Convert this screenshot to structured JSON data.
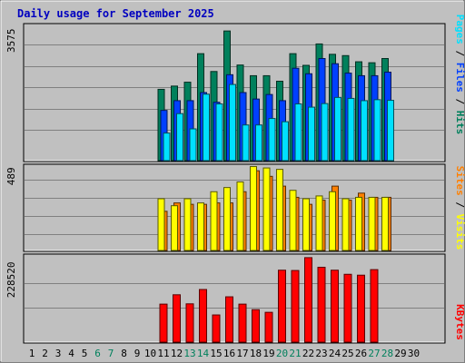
{
  "title": "Daily usage for September 2025",
  "colors": {
    "background": "#c0c0c0",
    "plot_bg": "#c0c0c0",
    "hits": "#00805c",
    "files": "#0040ff",
    "pages": "#00e0ff",
    "visits": "#ffff00",
    "sites": "#ff8000",
    "kbytes": "#ff0000",
    "weekend_label": "#00805c",
    "title": "#0000c0"
  },
  "chart_data": [
    {
      "type": "bar",
      "name": "hits-files-pages",
      "y_tick_label": "3575",
      "ylim": [
        0,
        4200
      ],
      "categories": [
        "1",
        "2",
        "3",
        "4",
        "5",
        "6",
        "7",
        "8",
        "9",
        "10",
        "11",
        "12",
        "13",
        "14",
        "15",
        "16",
        "17",
        "18",
        "19",
        "20",
        "21",
        "22",
        "23",
        "24",
        "25",
        "26",
        "27",
        "28",
        "29",
        "30"
      ],
      "series": [
        {
          "name": "Hits",
          "values": [
            null,
            null,
            null,
            null,
            null,
            null,
            null,
            null,
            null,
            null,
            2200,
            2300,
            2420,
            3300,
            2750,
            4000,
            2950,
            2620,
            2620,
            2450,
            3300,
            2940,
            3600,
            3280,
            3240,
            3050,
            3020,
            3150,
            null,
            null
          ]
        },
        {
          "name": "Files",
          "values": [
            null,
            null,
            null,
            null,
            null,
            null,
            null,
            null,
            null,
            null,
            1550,
            1850,
            1850,
            2100,
            1800,
            2650,
            2100,
            1900,
            2040,
            1850,
            2850,
            2680,
            3150,
            2990,
            2700,
            2620,
            2620,
            2730,
            null,
            null
          ]
        },
        {
          "name": "Pages",
          "values": [
            null,
            null,
            null,
            null,
            null,
            null,
            null,
            null,
            null,
            null,
            850,
            1450,
            980,
            2050,
            1750,
            2350,
            1100,
            1100,
            1300,
            1200,
            1750,
            1650,
            1760,
            1950,
            1920,
            1850,
            1880,
            1860,
            null,
            null
          ]
        }
      ],
      "legend": [
        "Pages",
        "Files",
        "Hits"
      ]
    },
    {
      "type": "bar",
      "name": "sites-visits",
      "y_tick_label": "489",
      "ylim": [
        0,
        610
      ],
      "categories": [
        "1",
        "2",
        "3",
        "4",
        "5",
        "6",
        "7",
        "8",
        "9",
        "10",
        "11",
        "12",
        "13",
        "14",
        "15",
        "16",
        "17",
        "18",
        "19",
        "20",
        "21",
        "22",
        "23",
        "24",
        "25",
        "26",
        "27",
        "28",
        "29",
        "30"
      ],
      "series": [
        {
          "name": "Visits",
          "values": [
            null,
            null,
            null,
            null,
            null,
            null,
            null,
            null,
            null,
            null,
            280,
            340,
            330,
            330,
            340,
            340,
            420,
            570,
            530,
            460,
            380,
            330,
            360,
            460,
            360,
            410,
            380,
            380,
            null,
            null
          ]
        },
        {
          "name": "Sites",
          "values": [
            null,
            null,
            null,
            null,
            null,
            null,
            null,
            null,
            null,
            null,
            370,
            320,
            370,
            340,
            420,
            450,
            490,
            600,
            590,
            580,
            430,
            370,
            390,
            420,
            370,
            380,
            380,
            380,
            null,
            null
          ]
        }
      ],
      "legend": [
        "Sites",
        "Visits"
      ]
    },
    {
      "type": "bar",
      "name": "kbytes",
      "y_tick_label": "228520",
      "ylim": [
        0,
        298000
      ],
      "categories": [
        "1",
        "2",
        "3",
        "4",
        "5",
        "6",
        "7",
        "8",
        "9",
        "10",
        "11",
        "12",
        "13",
        "14",
        "15",
        "16",
        "17",
        "18",
        "19",
        "20",
        "21",
        "22",
        "23",
        "24",
        "25",
        "26",
        "27",
        "28",
        "29",
        "30"
      ],
      "series": [
        {
          "name": "KBytes",
          "values": [
            null,
            null,
            null,
            null,
            null,
            null,
            null,
            null,
            null,
            null,
            130000,
            162000,
            131000,
            180000,
            93000,
            155000,
            130000,
            111000,
            102000,
            246000,
            245000,
            289000,
            256000,
            246000,
            232000,
            229000,
            248000,
            null,
            null,
            null
          ]
        }
      ],
      "legend": [
        "KBytes"
      ]
    }
  ],
  "x_labels": [
    {
      "day": "1",
      "weekend": false
    },
    {
      "day": "2",
      "weekend": false
    },
    {
      "day": "3",
      "weekend": false
    },
    {
      "day": "4",
      "weekend": false
    },
    {
      "day": "5",
      "weekend": false
    },
    {
      "day": "6",
      "weekend": true
    },
    {
      "day": "7",
      "weekend": true
    },
    {
      "day": "8",
      "weekend": false
    },
    {
      "day": "9",
      "weekend": false
    },
    {
      "day": "10",
      "weekend": false
    },
    {
      "day": "11",
      "weekend": false
    },
    {
      "day": "12",
      "weekend": false
    },
    {
      "day": "13",
      "weekend": true
    },
    {
      "day": "14",
      "weekend": true
    },
    {
      "day": "15",
      "weekend": false
    },
    {
      "day": "16",
      "weekend": false
    },
    {
      "day": "17",
      "weekend": false
    },
    {
      "day": "18",
      "weekend": false
    },
    {
      "day": "19",
      "weekend": false
    },
    {
      "day": "20",
      "weekend": true
    },
    {
      "day": "21",
      "weekend": true
    },
    {
      "day": "22",
      "weekend": false
    },
    {
      "day": "23",
      "weekend": false
    },
    {
      "day": "24",
      "weekend": false
    },
    {
      "day": "25",
      "weekend": false
    },
    {
      "day": "26",
      "weekend": false
    },
    {
      "day": "27",
      "weekend": true
    },
    {
      "day": "28",
      "weekend": true
    },
    {
      "day": "29",
      "weekend": false
    },
    {
      "day": "30",
      "weekend": false
    }
  ],
  "right_labels": {
    "top": [
      {
        "text": "Pages",
        "color": "#00e0ff"
      },
      {
        "text": " / ",
        "color": "#000000"
      },
      {
        "text": "Files",
        "color": "#0040ff"
      },
      {
        "text": " / ",
        "color": "#000000"
      },
      {
        "text": "Hits",
        "color": "#00805c"
      }
    ],
    "middle": [
      {
        "text": "Sites",
        "color": "#ff8000"
      },
      {
        "text": " / ",
        "color": "#000000"
      },
      {
        "text": "Visits",
        "color": "#ffff00"
      }
    ],
    "bottom": [
      {
        "text": "KBytes",
        "color": "#ff0000"
      }
    ]
  }
}
